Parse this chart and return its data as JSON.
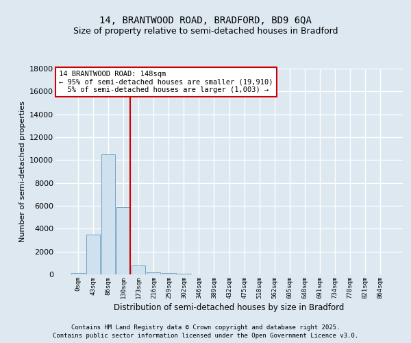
{
  "title_line1": "14, BRANTWOOD ROAD, BRADFORD, BD9 6QA",
  "title_line2": "Size of property relative to semi-detached houses in Bradford",
  "xlabel": "Distribution of semi-detached houses by size in Bradford",
  "ylabel": "Number of semi-detached properties",
  "bar_labels": [
    "0sqm",
    "43sqm",
    "86sqm",
    "130sqm",
    "173sqm",
    "216sqm",
    "259sqm",
    "302sqm",
    "346sqm",
    "389sqm",
    "432sqm",
    "475sqm",
    "518sqm",
    "562sqm",
    "605sqm",
    "648sqm",
    "691sqm",
    "734sqm",
    "778sqm",
    "821sqm",
    "864sqm"
  ],
  "bar_values": [
    100,
    3500,
    10500,
    5900,
    800,
    200,
    100,
    50,
    0,
    0,
    0,
    0,
    0,
    0,
    0,
    0,
    0,
    0,
    0,
    0,
    0
  ],
  "bar_color": "#cfe0ef",
  "bar_edge_color": "#6699bb",
  "ylim": [
    0,
    18000
  ],
  "yticks": [
    0,
    2000,
    4000,
    6000,
    8000,
    10000,
    12000,
    14000,
    16000,
    18000
  ],
  "property_line_x": 3.45,
  "annotation_text_line1": "14 BRANTWOOD ROAD: 148sqm",
  "annotation_text_line2": "← 95% of semi-detached houses are smaller (19,910)",
  "annotation_text_line3": "  5% of semi-detached houses are larger (1,003) →",
  "footer_line1": "Contains HM Land Registry data © Crown copyright and database right 2025.",
  "footer_line2": "Contains public sector information licensed under the Open Government Licence v3.0.",
  "background_color": "#dde8f0",
  "plot_bg_color": "#dde8f0",
  "grid_color": "#ffffff",
  "title_fontsize": 10,
  "subtitle_fontsize": 9,
  "annotation_box_color": "#ffffff",
  "annotation_box_edge": "#cc0000",
  "red_line_color": "#cc0000"
}
